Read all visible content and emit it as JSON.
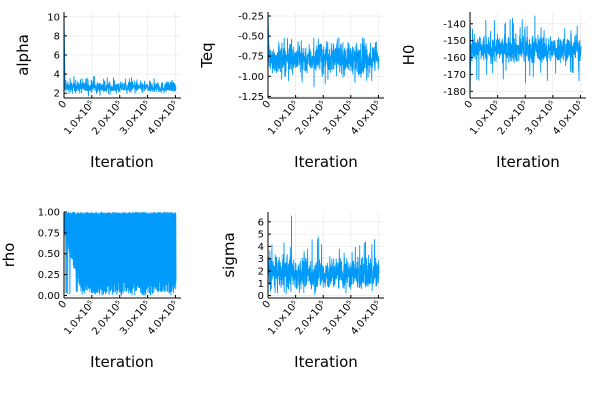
{
  "chart_data": [
    {
      "type": "line",
      "panel": "alpha",
      "ylabel": "alpha",
      "xlabel": "Iteration",
      "xlim": [
        0,
        420000
      ],
      "ylim": [
        1.5,
        10.5
      ],
      "yticks": [
        2,
        4,
        6,
        8,
        10
      ],
      "ytick_labels": [
        "2",
        "4",
        "6",
        "8",
        "10"
      ],
      "xticks": [
        0,
        100000,
        200000,
        300000,
        400000
      ],
      "xtick_labels": [
        "0",
        "1.0×10⁵",
        "2.0×10⁵",
        "3.0×10⁵",
        "4.0×10⁵"
      ],
      "grid": true,
      "series": [
        {
          "color": "#009AFA",
          "trace": {
            "burn_in_start": 10.3,
            "burn_in_end": 4000,
            "mean": 2.6,
            "band_low": 2.0,
            "band_high": 3.3,
            "spike_max": 3.8
          }
        }
      ]
    },
    {
      "type": "line",
      "panel": "Teq",
      "ylabel": "Teq",
      "xlabel": "Iteration",
      "xlim": [
        0,
        420000
      ],
      "ylim": [
        -1.27,
        -0.2
      ],
      "yticks": [
        -1.25,
        -1.0,
        -0.75,
        -0.5,
        -0.25
      ],
      "ytick_labels": [
        "-1.25",
        "-1.00",
        "-0.75",
        "-0.50",
        "-0.25"
      ],
      "xticks": [
        0,
        100000,
        200000,
        300000,
        400000
      ],
      "xtick_labels": [
        "0",
        "1.0×10⁵",
        "2.0×10⁵",
        "3.0×10⁵",
        "4.0×10⁵"
      ],
      "grid": true,
      "series": [
        {
          "color": "#009AFA",
          "trace": {
            "burn_in_start": -0.22,
            "burn_in_end": 4000,
            "mean": -0.78,
            "band_low": -1.0,
            "band_high": -0.6,
            "spike_min": -1.15,
            "spike_max": -0.52
          }
        }
      ]
    },
    {
      "type": "line",
      "panel": "H0",
      "ylabel": "H0",
      "xlabel": "Iteration",
      "xlim": [
        0,
        420000
      ],
      "ylim": [
        -184,
        -133
      ],
      "yticks": [
        -180,
        -170,
        -160,
        -150,
        -140
      ],
      "ytick_labels": [
        "-180",
        "-170",
        "-160",
        "-150",
        "-140"
      ],
      "xticks": [
        0,
        100000,
        200000,
        300000,
        400000
      ],
      "xtick_labels": [
        "0",
        "1.0×10⁵",
        "2.0×10⁵",
        "3.0×10⁵",
        "4.0×10⁵"
      ],
      "grid": true,
      "series": [
        {
          "color": "#009AFA",
          "trace": {
            "burn_in_start": -183,
            "burn_in_end": 3000,
            "mean": -155,
            "band_low": -164,
            "band_high": -146,
            "spike_min": -176,
            "spike_max": -135
          }
        }
      ]
    },
    {
      "type": "line",
      "panel": "rho",
      "ylabel": "rho",
      "xlabel": "Iteration",
      "xlim": [
        0,
        420000
      ],
      "ylim": [
        -0.03,
        1.0
      ],
      "yticks": [
        0.0,
        0.25,
        0.5,
        0.75,
        1.0
      ],
      "ytick_labels": [
        "0.00",
        "0.25",
        "0.50",
        "0.75",
        "1.00"
      ],
      "xticks": [
        0,
        100000,
        200000,
        300000,
        400000
      ],
      "xtick_labels": [
        "0",
        "1.0×10⁵",
        "2.0×10⁵",
        "3.0×10⁵",
        "4.0×10⁵"
      ],
      "grid": true,
      "series": [
        {
          "color": "#009AFA",
          "trace": {
            "band_low": 0.0,
            "band_high": 1.0,
            "early_min_trend": [
              0.7,
              0.05
            ],
            "spike_min": 0.0
          }
        }
      ]
    },
    {
      "type": "line",
      "panel": "sigma",
      "ylabel": "sigma",
      "xlabel": "Iteration",
      "xlim": [
        0,
        420000
      ],
      "ylim": [
        -0.2,
        6.8
      ],
      "yticks": [
        0,
        1,
        2,
        3,
        4,
        5,
        6
      ],
      "ytick_labels": [
        "0",
        "1",
        "2",
        "3",
        "4",
        "5",
        "6"
      ],
      "xticks": [
        0,
        100000,
        200000,
        300000,
        400000
      ],
      "xtick_labels": [
        "0",
        "1.0×10⁵",
        "2.0×10⁵",
        "3.0×10⁵",
        "4.0×10⁵"
      ],
      "grid": true,
      "series": [
        {
          "color": "#009AFA",
          "trace": {
            "mean": 1.8,
            "band_low": 0.1,
            "band_high": 3.2,
            "spike_max": 4.8,
            "outlier_x": 85000,
            "outlier_y": 6.5
          }
        }
      ]
    }
  ],
  "colors": {
    "series": "#009AFA",
    "grid": "#e6e6e6",
    "axis": "#000000"
  }
}
